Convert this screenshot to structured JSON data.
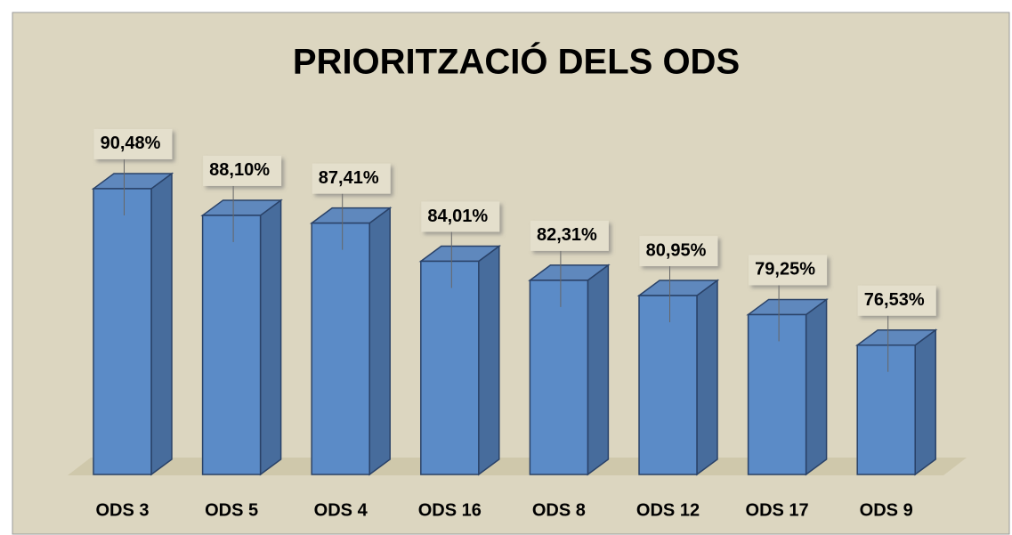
{
  "chart_data": {
    "type": "bar",
    "title": "PRIORITZACIÓ DELS ODS",
    "categories": [
      "ODS 3",
      "ODS 5",
      "ODS 4",
      "ODS 16",
      "ODS 8",
      "ODS 12",
      "ODS 17",
      "ODS 9"
    ],
    "values": [
      90.48,
      88.1,
      87.41,
      84.01,
      82.31,
      80.95,
      79.25,
      76.53
    ],
    "value_labels": [
      "90,48%",
      "88,10%",
      "87,41%",
      "84,01%",
      "82,31%",
      "80,95%",
      "79,25%",
      "76,53%"
    ],
    "color": "#5b8bc7",
    "ylim": [
      65,
      95
    ]
  }
}
